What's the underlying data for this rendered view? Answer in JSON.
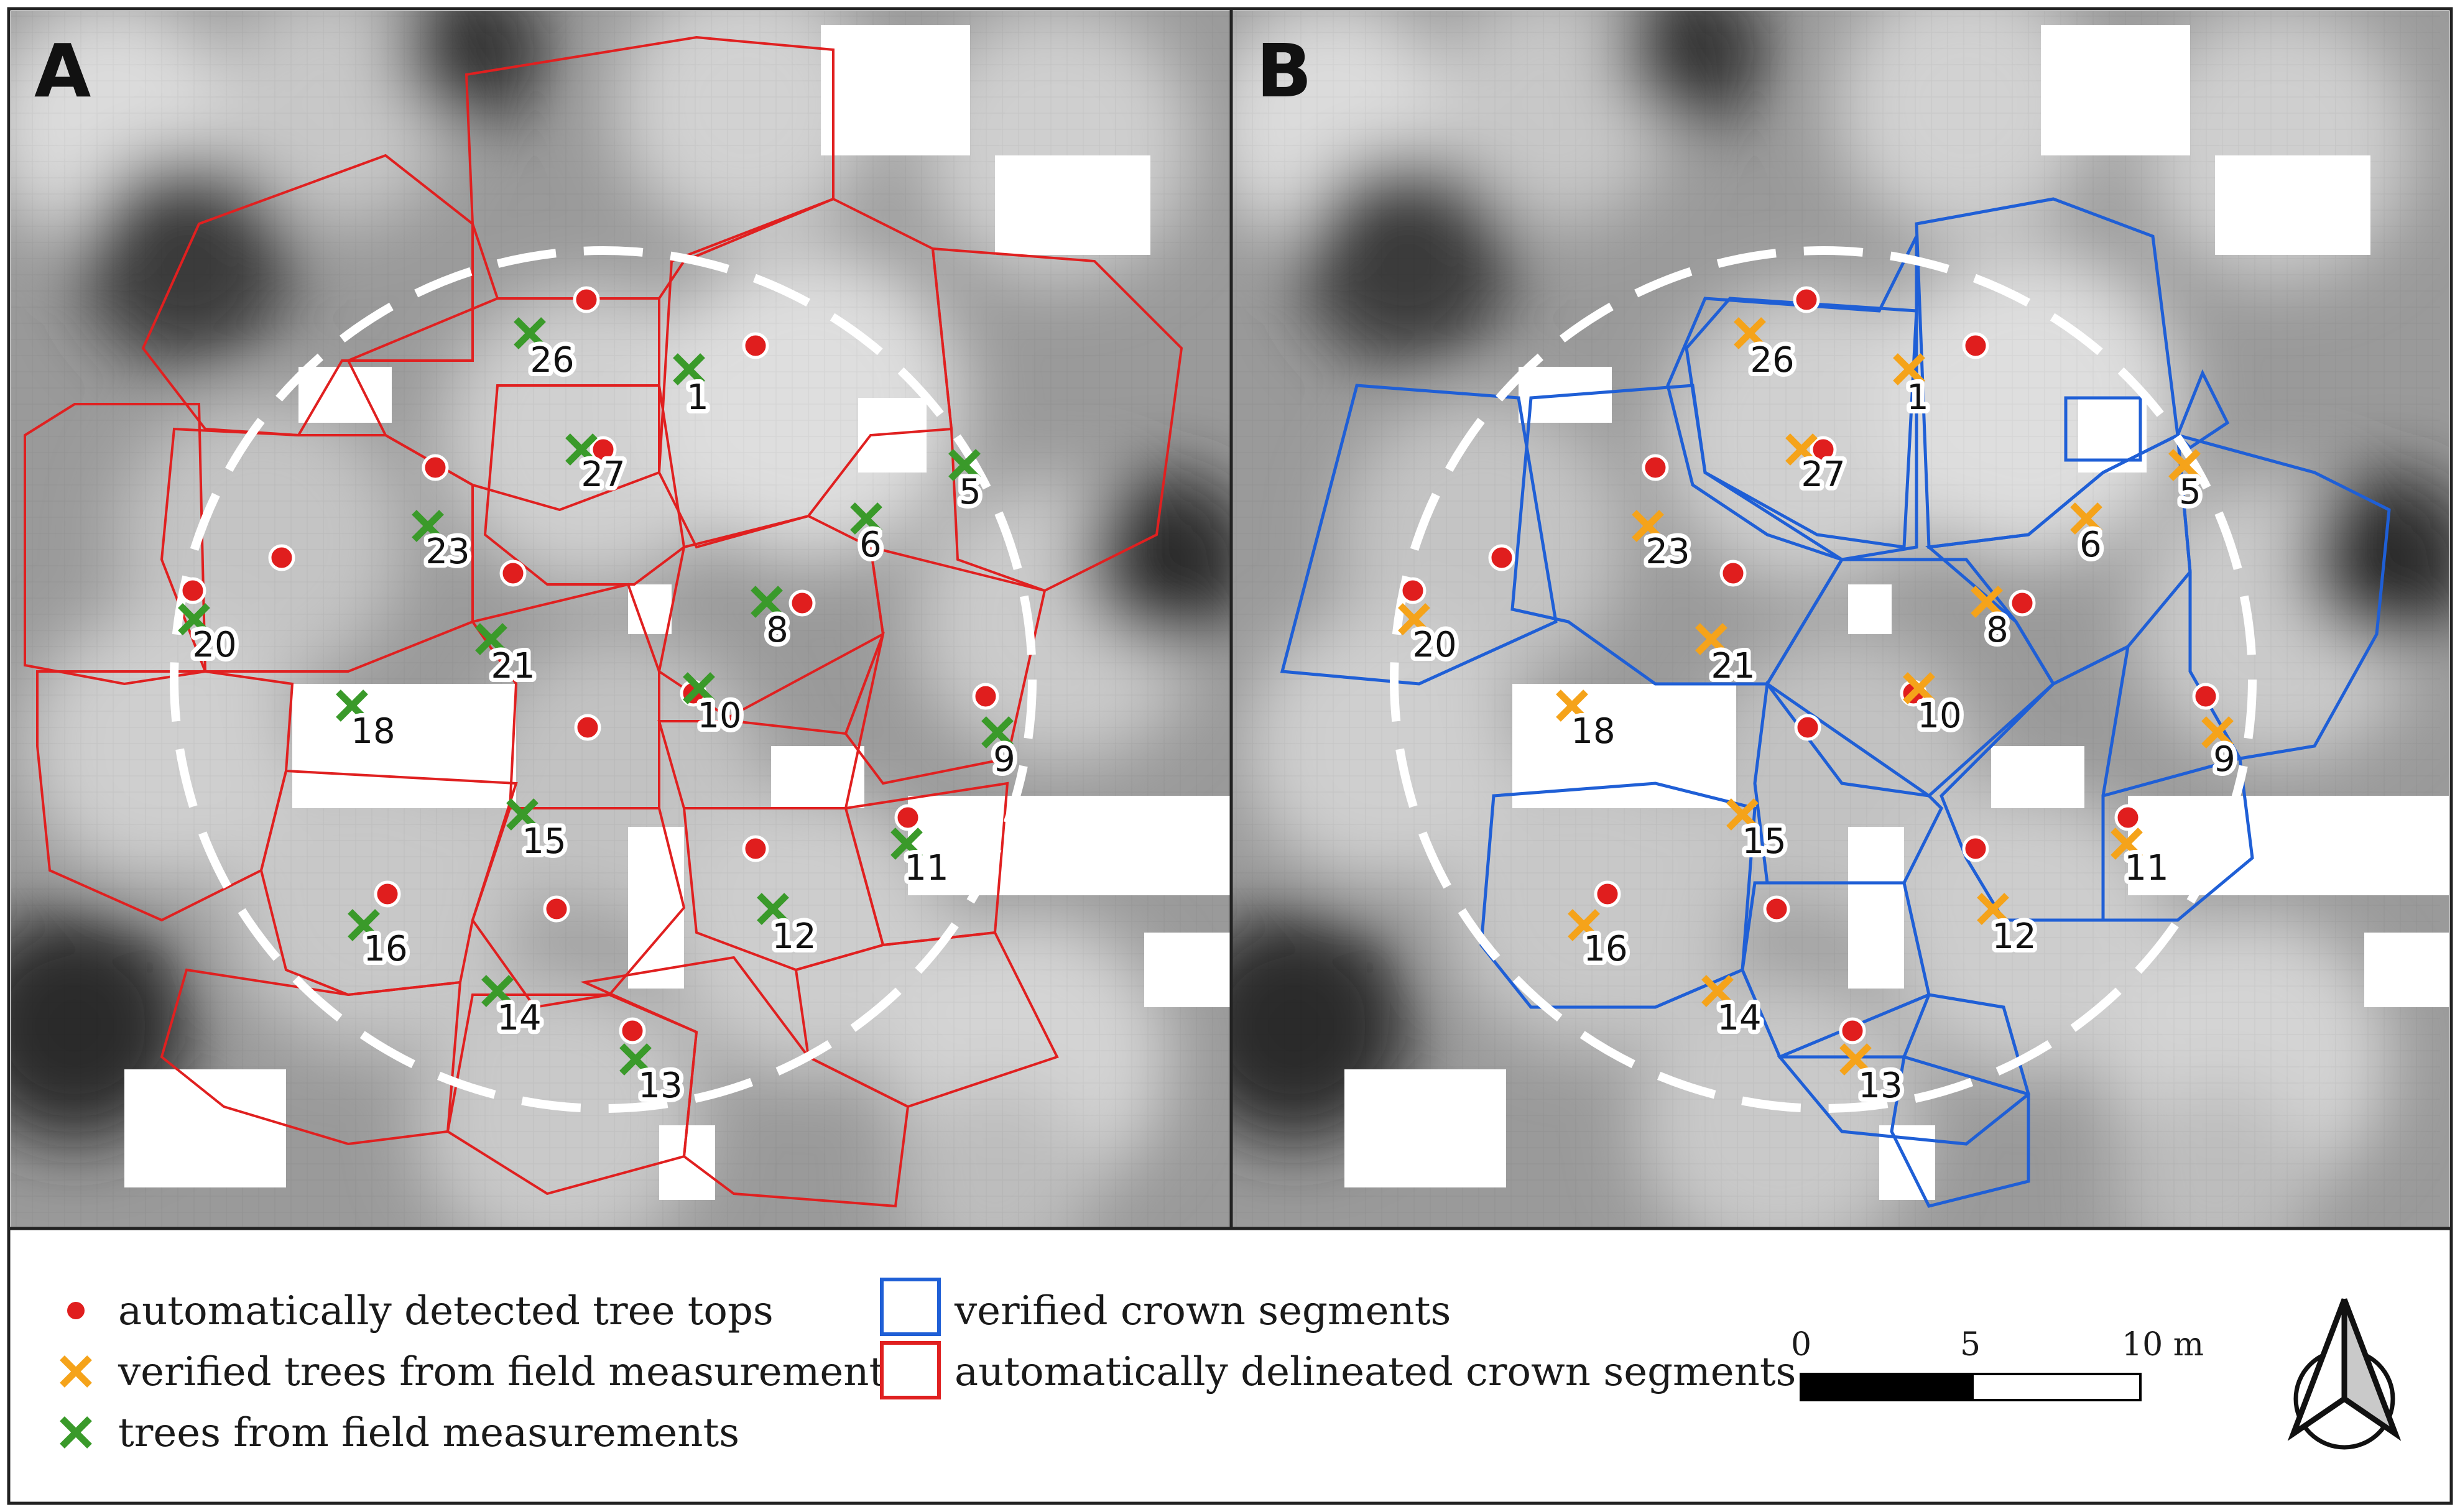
{
  "panels": [
    {
      "letter": "A",
      "segment_color": "#e02020",
      "field_marker_color": "#3a9a2a",
      "segments_kind": "automatically delineated crown segments",
      "field_kind": "trees from field measurements"
    },
    {
      "letter": "B",
      "segment_color": "#1f5fd6",
      "field_marker_color": "#f5a31a",
      "segments_kind": "verified crown segments",
      "field_kind": "verified trees from field measurements"
    }
  ],
  "tree_labels": [
    "26",
    "1",
    "27",
    "5",
    "23",
    "6",
    "20",
    "8",
    "21",
    "18",
    "10",
    "9",
    "15",
    "11",
    "12",
    "16",
    "14",
    "13"
  ],
  "legend": {
    "tree_tops": "automatically detected tree tops",
    "verified_trees": "verified trees from field measurements",
    "field_trees": "trees from field measurements",
    "verified_segments": "verified crown segments",
    "auto_segments": "automatically delineated crown segments"
  },
  "scale_bar": {
    "ticks": [
      "0",
      "5",
      "10 m"
    ]
  },
  "colors": {
    "tree_top": "#e01e1e",
    "field_tree": "#3a9a2a",
    "verified_tree": "#f5a31a",
    "verified_segment": "#1f5fd6",
    "auto_segment": "#e02020",
    "plot_circle": "#ffffff"
  },
  "icons": {
    "north_arrow": "north-arrow-icon"
  }
}
